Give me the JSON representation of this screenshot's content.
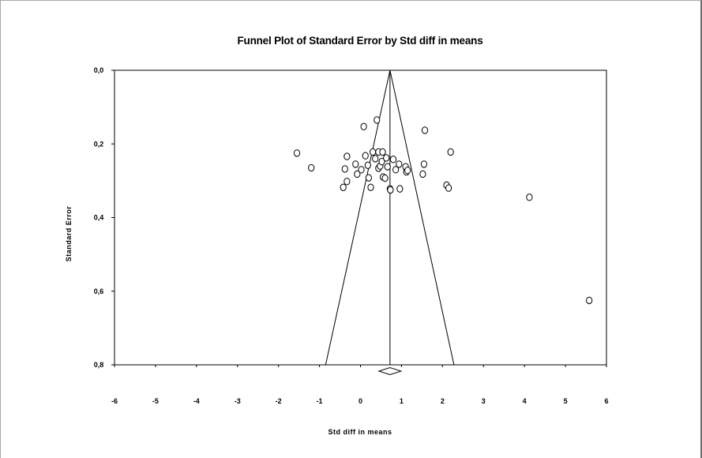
{
  "chart_data": {
    "type": "scatter",
    "title": "Funnel Plot of Standard Error by Std diff in means",
    "xlabel": "Std diff in means",
    "ylabel": "Standard Error",
    "xlim": [
      -6,
      6
    ],
    "ylim": [
      0.8,
      0.0
    ],
    "y_axis_inverted": true,
    "x_ticks": [
      -6,
      -5,
      -4,
      -3,
      -2,
      -1,
      0,
      1,
      2,
      3,
      4,
      5,
      6
    ],
    "x_tick_labels": [
      "-6",
      "-5",
      "-4",
      "-3",
      "-2",
      "-1",
      "0",
      "1",
      "2",
      "3",
      "4",
      "5",
      "6"
    ],
    "y_ticks": [
      0.0,
      0.2,
      0.4,
      0.6,
      0.8
    ],
    "y_tick_labels": [
      "0,0",
      "0,2",
      "0,4",
      "0,6",
      "0,8"
    ],
    "grid": false,
    "summary_effect": 0.72,
    "summary_diamond": {
      "center": 0.72,
      "lower": 0.45,
      "upper": 0.99
    },
    "funnel_limits": {
      "apex": [
        0.72,
        0.0
      ],
      "base_left": [
        -0.85,
        0.8
      ],
      "base_right": [
        2.28,
        0.8
      ]
    },
    "points": [
      {
        "x": -1.55,
        "y": 0.225
      },
      {
        "x": -1.2,
        "y": 0.265
      },
      {
        "x": -0.42,
        "y": 0.318
      },
      {
        "x": -0.38,
        "y": 0.268
      },
      {
        "x": -0.33,
        "y": 0.302
      },
      {
        "x": -0.33,
        "y": 0.234
      },
      {
        "x": -0.12,
        "y": 0.255
      },
      {
        "x": -0.08,
        "y": 0.282
      },
      {
        "x": 0.02,
        "y": 0.27
      },
      {
        "x": 0.08,
        "y": 0.153
      },
      {
        "x": 0.12,
        "y": 0.232
      },
      {
        "x": 0.18,
        "y": 0.258
      },
      {
        "x": 0.2,
        "y": 0.292
      },
      {
        "x": 0.25,
        "y": 0.318
      },
      {
        "x": 0.3,
        "y": 0.222
      },
      {
        "x": 0.36,
        "y": 0.24
      },
      {
        "x": 0.4,
        "y": 0.135
      },
      {
        "x": 0.44,
        "y": 0.222
      },
      {
        "x": 0.44,
        "y": 0.266
      },
      {
        "x": 0.48,
        "y": 0.26
      },
      {
        "x": 0.52,
        "y": 0.248
      },
      {
        "x": 0.54,
        "y": 0.222
      },
      {
        "x": 0.55,
        "y": 0.29
      },
      {
        "x": 0.6,
        "y": 0.293
      },
      {
        "x": 0.63,
        "y": 0.238
      },
      {
        "x": 0.66,
        "y": 0.262
      },
      {
        "x": 0.72,
        "y": 0.322
      },
      {
        "x": 0.73,
        "y": 0.325
      },
      {
        "x": 0.8,
        "y": 0.242
      },
      {
        "x": 0.86,
        "y": 0.27
      },
      {
        "x": 0.94,
        "y": 0.255
      },
      {
        "x": 0.96,
        "y": 0.322
      },
      {
        "x": 1.1,
        "y": 0.262
      },
      {
        "x": 1.12,
        "y": 0.276
      },
      {
        "x": 1.15,
        "y": 0.272
      },
      {
        "x": 1.52,
        "y": 0.282
      },
      {
        "x": 1.55,
        "y": 0.255
      },
      {
        "x": 1.57,
        "y": 0.163
      },
      {
        "x": 2.1,
        "y": 0.312
      },
      {
        "x": 2.15,
        "y": 0.32
      },
      {
        "x": 2.2,
        "y": 0.222
      },
      {
        "x": 4.12,
        "y": 0.345
      },
      {
        "x": 5.58,
        "y": 0.625
      }
    ]
  }
}
